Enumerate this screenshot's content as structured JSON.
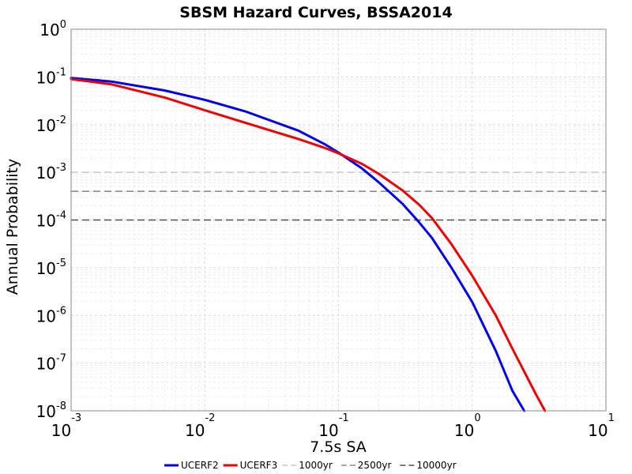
{
  "chart_data": {
    "type": "line",
    "title": "SBSM Hazard Curves, BSSA2014",
    "xlabel": "7.5s SA",
    "ylabel": "Annual Probability",
    "x_scale": "log",
    "y_scale": "log",
    "xlim": [
      0.001,
      10
    ],
    "ylim": [
      1e-08,
      1
    ],
    "grid": true,
    "legend_position": "bottom",
    "x_ticks": [
      {
        "base": "10",
        "exp": "-3"
      },
      {
        "base": "10",
        "exp": "-2"
      },
      {
        "base": "10",
        "exp": "-1"
      },
      {
        "base": "10",
        "exp": "0"
      },
      {
        "base": "10",
        "exp": "1"
      }
    ],
    "y_ticks": [
      {
        "base": "10",
        "exp": "0"
      },
      {
        "base": "10",
        "exp": "-1"
      },
      {
        "base": "10",
        "exp": "-2"
      },
      {
        "base": "10",
        "exp": "-3"
      },
      {
        "base": "10",
        "exp": "-4"
      },
      {
        "base": "10",
        "exp": "-5"
      },
      {
        "base": "10",
        "exp": "-6"
      },
      {
        "base": "10",
        "exp": "-7"
      },
      {
        "base": "10",
        "exp": "-8"
      }
    ],
    "series": [
      {
        "name": "UCERF2",
        "color": "#0000ee",
        "x": [
          0.001,
          0.002,
          0.005,
          0.01,
          0.02,
          0.05,
          0.08,
          0.1,
          0.15,
          0.2,
          0.3,
          0.4,
          0.5,
          0.7,
          1.0,
          1.5,
          2.0,
          2.45
        ],
        "y": [
          0.095,
          0.08,
          0.052,
          0.033,
          0.019,
          0.0075,
          0.0038,
          0.0026,
          0.0012,
          0.00062,
          0.00022,
          9e-05,
          4.2e-05,
          1e-05,
          1.9e-06,
          1.8e-07,
          2.6e-08,
          1e-08
        ]
      },
      {
        "name": "UCERF3",
        "color": "#ee0000",
        "x": [
          0.001,
          0.002,
          0.005,
          0.01,
          0.02,
          0.05,
          0.08,
          0.1,
          0.15,
          0.2,
          0.3,
          0.4,
          0.5,
          0.7,
          1.0,
          1.5,
          2.0,
          3.0,
          3.5
        ],
        "y": [
          0.09,
          0.07,
          0.037,
          0.02,
          0.011,
          0.005,
          0.0032,
          0.0025,
          0.0015,
          0.00093,
          0.00042,
          0.00021,
          0.00011,
          3.1e-05,
          6.8e-06,
          1e-06,
          2e-07,
          2.2e-08,
          1e-08
        ]
      }
    ],
    "reference_lines": [
      {
        "name": "1000yr",
        "y": 0.001,
        "color": "#c8c8c8"
      },
      {
        "name": "2500yr",
        "y": 0.0004,
        "color": "#8c8c8c"
      },
      {
        "name": "10000yr",
        "y": 0.0001,
        "color": "#505050"
      }
    ]
  }
}
